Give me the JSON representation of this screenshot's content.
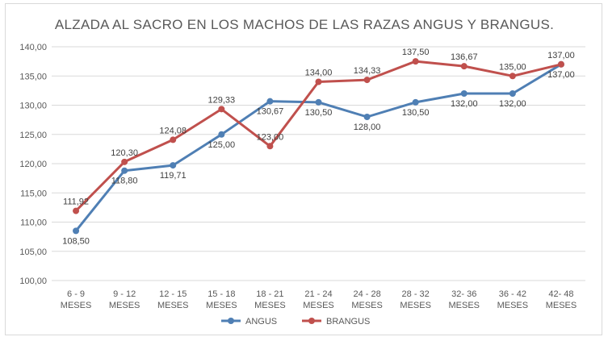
{
  "chart_data": {
    "type": "line",
    "title": "ALZADA AL SACRO EN LOS MACHOS  DE LAS RAZAS ANGUS Y BRANGUS.",
    "categories": [
      [
        "6 - 9",
        "MESES"
      ],
      [
        "9 - 12",
        "MESES"
      ],
      [
        "12 - 15",
        "MESES"
      ],
      [
        "15 - 18",
        "MESES"
      ],
      [
        "18 - 21",
        "MESES"
      ],
      [
        "21 - 24",
        "MESES"
      ],
      [
        "24 - 28",
        "MESES"
      ],
      [
        "28 - 32",
        "MESES"
      ],
      [
        "32- 36",
        "MESES"
      ],
      [
        "36 - 42",
        "MESES"
      ],
      [
        "42- 48",
        "MESES"
      ]
    ],
    "ylim": [
      100,
      140
    ],
    "ytick_step": 5,
    "ytick_labels": [
      "100,00",
      "105,00",
      "110,00",
      "115,00",
      "120,00",
      "125,00",
      "130,00",
      "135,00",
      "140,00"
    ],
    "grid": true,
    "legend_position": "bottom",
    "series": [
      {
        "name": "ANGUS",
        "color": "#4f7fb4",
        "values": [
          108.5,
          118.8,
          119.71,
          125.0,
          130.67,
          130.5,
          128.0,
          130.5,
          132.0,
          132.0,
          137.0
        ],
        "labels": [
          "108,50",
          "118,80",
          "119,71",
          "125,00",
          "130,67",
          "130,50",
          "128,00",
          "130,50",
          "132,00",
          "132,00",
          "137,00"
        ],
        "label_position": "below"
      },
      {
        "name": "BRANGUS",
        "color": "#c0504d",
        "values": [
          111.92,
          120.3,
          124.08,
          129.33,
          123.0,
          134.0,
          134.33,
          137.5,
          136.67,
          135.0,
          137.0
        ],
        "labels": [
          "111,92",
          "120,30",
          "124,08",
          "129,33",
          "123,00",
          "134,00",
          "134,33",
          "137,50",
          "136,67",
          "135,00",
          "137,00"
        ],
        "label_position": "above"
      }
    ]
  }
}
